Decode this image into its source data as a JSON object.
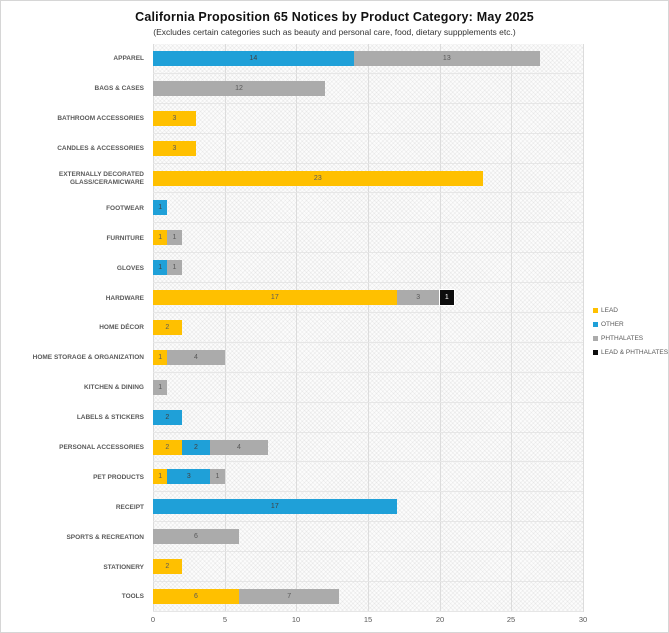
{
  "chart_data": {
    "type": "bar",
    "orientation": "horizontal",
    "stacked": true,
    "title": "California Proposition 65 Notices by Product Category: May 2025",
    "subtitle": "(Excludes certain categories such as beauty and personal care, food, dietary suppplements etc.)",
    "xlabel": "",
    "ylabel": "",
    "xlim": [
      0,
      30
    ],
    "x_ticks": [
      0,
      5,
      10,
      15,
      20,
      25,
      30
    ],
    "grid": true,
    "legend_position": "right",
    "label_color_default": "#595959",
    "categories": [
      "APPAREL",
      "BAGS & CASES",
      "BATHROOM ACCESSORIES",
      "CANDLES & ACCESSORIES",
      "EXTERNALLY DECORATED GLASS/CERAMICWARE",
      "FOOTWEAR",
      "FURNITURE",
      "GLOVES",
      "HARDWARE",
      "HOME DÉCOR",
      "HOME STORAGE & ORGANIZATION",
      "KITCHEN & DINING",
      "LABELS & STICKERS",
      "PERSONAL ACCESSORIES",
      "PET PRODUCTS",
      "RECEIPT",
      "SPORTS & RECREATION",
      "STATIONERY",
      "TOOLS"
    ],
    "series": [
      {
        "name": "LEAD",
        "color": "#FFC000",
        "label_color": "#595959",
        "values": [
          0,
          0,
          3,
          3,
          23,
          0,
          1,
          0,
          17,
          2,
          1,
          0,
          0,
          2,
          1,
          0,
          0,
          2,
          6
        ]
      },
      {
        "name": "OTHER",
        "color": "#1FA0D8",
        "label_color": "#404040",
        "values": [
          14,
          0,
          0,
          0,
          0,
          1,
          0,
          1,
          0,
          0,
          0,
          0,
          2,
          2,
          3,
          17,
          0,
          0,
          0
        ]
      },
      {
        "name": "PHTHALATES",
        "color": "#ABABAB",
        "label_color": "#595959",
        "values": [
          13,
          12,
          0,
          0,
          0,
          0,
          1,
          1,
          3,
          0,
          4,
          1,
          0,
          4,
          1,
          0,
          6,
          0,
          7
        ]
      },
      {
        "name": "LEAD & PHTHALATES",
        "color": "#0D0D0D",
        "label_color": "#ffffff",
        "highlight_border": "#ffffff",
        "values": [
          0,
          0,
          0,
          0,
          0,
          0,
          0,
          0,
          1,
          0,
          0,
          0,
          0,
          0,
          0,
          0,
          0,
          0,
          0
        ]
      }
    ]
  }
}
